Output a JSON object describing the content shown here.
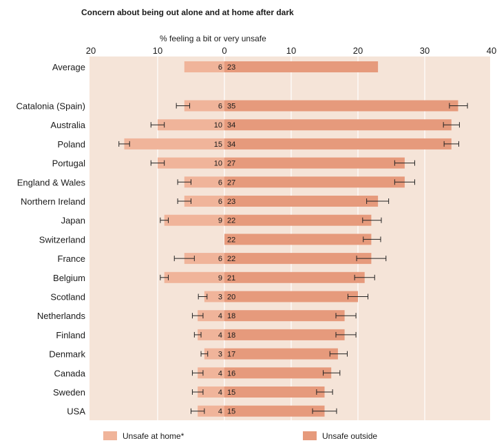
{
  "chart_data": {
    "type": "bar",
    "orientation": "horizontal-diverging",
    "title": "Concern about being out alone and at home after dark",
    "xlabel": "% feeling a bit or very unsafe",
    "left_ticks": [
      "20",
      "10",
      "0"
    ],
    "right_ticks": [
      "10",
      "20",
      "30",
      "40"
    ],
    "xlim": [
      -20,
      40
    ],
    "grid": true,
    "legend_position": "bottom",
    "categories": [
      "Average",
      "Catalonia (Spain)",
      "Australia",
      "Poland",
      "Portugal",
      "England & Wales",
      "Northern Ireland",
      "Japan",
      "Switzerland",
      "France",
      "Belgium",
      "Scotland",
      "Netherlands",
      "Finland",
      "Denmark",
      "Canada",
      "Sweden",
      "USA"
    ],
    "series": [
      {
        "name": "Unsafe at home*",
        "color": "#f0b49a",
        "values": [
          6,
          6,
          10,
          15,
          10,
          6,
          6,
          9,
          null,
          6,
          9,
          3,
          4,
          4,
          3,
          4,
          4,
          4
        ],
        "labels": [
          "6",
          "6",
          "10",
          "15",
          "10",
          "6",
          "6",
          "9",
          "",
          "6",
          "9",
          "3",
          "4",
          "4",
          "3",
          "4",
          "4",
          "4"
        ],
        "error_low": [
          null,
          7.2,
          11,
          15.8,
          11,
          7,
          7,
          9.6,
          null,
          7.5,
          9.6,
          3.9,
          4.8,
          4.5,
          3.5,
          4.8,
          4.8,
          5
        ],
        "error_high": [
          null,
          5.2,
          9,
          14.2,
          9,
          5,
          5,
          8.4,
          null,
          4.5,
          8.4,
          2.6,
          3.2,
          3.5,
          2.5,
          3.2,
          3.2,
          3
        ]
      },
      {
        "name": "Unsafe outside",
        "color": "#e69a7c",
        "values": [
          23,
          35,
          34,
          34,
          27,
          27,
          23,
          22,
          22,
          22,
          21,
          20,
          18,
          18,
          17,
          16,
          15,
          15
        ],
        "labels": [
          "23",
          "35",
          "34",
          "34",
          "27",
          "27",
          "23",
          "22",
          "22",
          "22",
          "21",
          "20",
          "18",
          "18",
          "17",
          "16",
          "15",
          "15"
        ],
        "error_low": [
          null,
          33.7,
          32.8,
          32.9,
          25.5,
          25.5,
          21.3,
          20.7,
          20.8,
          19.8,
          19.5,
          18.5,
          16.7,
          16.7,
          15.8,
          14.8,
          13.8,
          13.2
        ],
        "error_high": [
          null,
          36.4,
          35.2,
          35.1,
          28.5,
          28.5,
          24.6,
          23.5,
          23.4,
          24.2,
          22.5,
          21.5,
          19.7,
          19.7,
          18.4,
          17.3,
          16.2,
          16.8
        ]
      }
    ]
  }
}
